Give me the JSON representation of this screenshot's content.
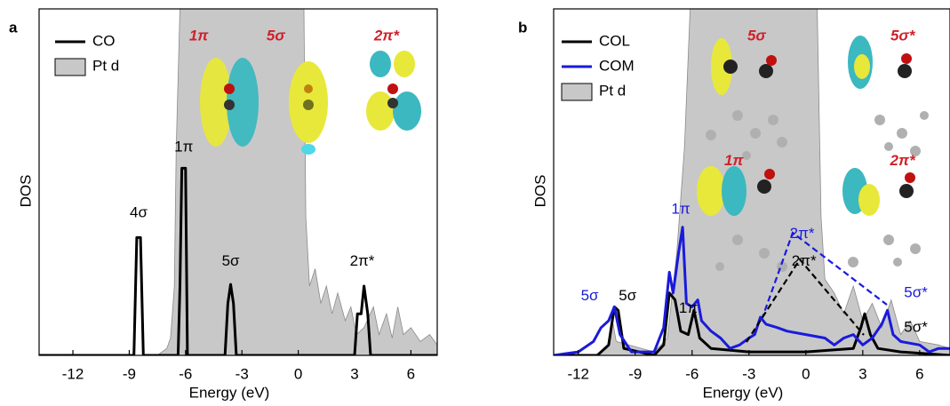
{
  "chart_data": [
    {
      "type": "area-line",
      "panel_label": "a",
      "x_label": "Energy (eV)",
      "y_label": "DOS",
      "xlim": [
        -13.8,
        7.4
      ],
      "ylim": [
        0,
        100
      ],
      "xticks": [
        -12,
        -9,
        -6,
        -3,
        0,
        3,
        6
      ],
      "series": [
        {
          "name": "CO",
          "style": "line",
          "color": "#000000",
          "x": [
            -13.8,
            -8.75,
            -8.6,
            -8.4,
            -8.25,
            -6.4,
            -6.3,
            -6.2,
            -6.0,
            -5.9,
            -3.9,
            -3.75,
            -3.6,
            -3.45,
            -3.3,
            3.0,
            3.15,
            3.35,
            3.5,
            3.7,
            3.85,
            7.4
          ],
          "values": [
            0,
            0,
            34,
            34,
            0,
            0,
            20,
            54,
            54,
            0,
            0,
            15,
            20.5,
            15,
            0,
            0,
            12,
            12,
            20,
            12,
            0,
            0
          ]
        },
        {
          "name": "Pt d",
          "style": "area",
          "color": "#c8c8c8",
          "x": [
            -7.5,
            -7.0,
            -6.8,
            -6.6,
            -6.5,
            -6.3,
            0.3,
            0.4,
            0.6,
            0.9,
            1.2,
            1.5,
            1.8,
            2.1,
            2.5,
            2.8,
            3.1,
            3.5,
            4.0,
            4.3,
            4.7,
            5.0,
            5.3,
            5.6,
            6.0,
            6.5,
            7.0,
            7.4
          ],
          "values": [
            0,
            2,
            5,
            20,
            60,
            100,
            100,
            40,
            20,
            25,
            15,
            20,
            12,
            18,
            10,
            14,
            6,
            8,
            14,
            6,
            12,
            5,
            14,
            6,
            8,
            4,
            6,
            3
          ]
        }
      ],
      "annotations": [
        {
          "text": "4σ",
          "x": -8.5,
          "y": 41,
          "color": "#000000",
          "italic": false
        },
        {
          "text": "1π",
          "x": -6.1,
          "y": 60,
          "color": "#000000",
          "italic": false
        },
        {
          "text": "5σ",
          "x": -3.6,
          "y": 27,
          "color": "#000000",
          "italic": false
        },
        {
          "text": "2π*",
          "x": 3.4,
          "y": 27,
          "color": "#000000",
          "italic": false
        },
        {
          "text": "1π",
          "x": -5.3,
          "y": 92,
          "color": "#d0202a",
          "italic": true
        },
        {
          "text": "5σ",
          "x": -1.2,
          "y": 92,
          "color": "#d0202a",
          "italic": true
        },
        {
          "text": "2π*",
          "x": 4.7,
          "y": 92,
          "color": "#d0202a",
          "italic": true
        }
      ]
    },
    {
      "type": "area-line",
      "panel_label": "b",
      "x_label": "Energy (eV)",
      "y_label": "DOS",
      "xlim": [
        -13.3,
        7.6
      ],
      "ylim": [
        0,
        100
      ],
      "xticks": [
        -12,
        -9,
        -6,
        -3,
        0,
        3,
        6
      ],
      "series": [
        {
          "name": "COL",
          "style": "line",
          "color": "#000000",
          "x": [
            -13.3,
            -11,
            -10.4,
            -10.1,
            -9.9,
            -9.6,
            -8,
            -7.5,
            -7.2,
            -6.9,
            -6.6,
            -6.2,
            -5.9,
            -5.6,
            -5,
            -3,
            0,
            2.5,
            2.9,
            3.1,
            3.4,
            3.8,
            5,
            7.6
          ],
          "values": [
            0,
            0,
            3,
            14,
            13,
            2,
            0,
            3,
            18,
            16,
            7,
            6,
            13,
            5,
            2,
            1,
            1,
            2,
            8,
            12,
            6,
            2,
            1,
            0
          ]
        },
        {
          "name": "COM",
          "style": "line",
          "color": "#1a1adc",
          "x": [
            -13.3,
            -12,
            -11.2,
            -10.8,
            -10.4,
            -10.1,
            -9.8,
            -9.2,
            -8,
            -7.5,
            -7.2,
            -7.0,
            -6.7,
            -6.5,
            -6.3,
            -6.0,
            -5.7,
            -5.5,
            -5,
            -4.5,
            -4,
            -3.5,
            -3.0,
            -2.7,
            -2.4,
            -2.1,
            -1.5,
            -1,
            0,
            1,
            1.5,
            2,
            2.5,
            3,
            3.5,
            4,
            4.3,
            4.6,
            5,
            6,
            6.5,
            7,
            7.6
          ],
          "values": [
            0,
            1,
            4,
            8,
            10,
            14,
            6,
            1,
            1,
            8,
            24,
            18,
            30,
            37,
            15,
            14,
            16,
            10,
            7,
            5,
            2,
            3,
            5,
            6,
            11,
            9,
            8,
            7,
            6,
            5,
            3,
            5,
            6,
            3,
            5,
            9,
            13,
            6,
            4,
            3,
            1,
            2,
            2
          ]
        },
        {
          "name": "Pt d",
          "style": "area",
          "color": "#c8c8c8",
          "x": [
            -11,
            -10.5,
            -10.2,
            -10,
            -8,
            -7.3,
            -6.8,
            -6.4,
            -6.1,
            0.6,
            0.8,
            1,
            1.5,
            2,
            2.5,
            3,
            3.5,
            4,
            4.5,
            5,
            5.5,
            6,
            7,
            7.6
          ],
          "values": [
            0,
            2,
            10,
            4,
            1,
            5,
            30,
            60,
            100,
            100,
            40,
            22,
            18,
            12,
            20,
            10,
            15,
            8,
            16,
            6,
            10,
            4,
            3,
            2
          ]
        }
      ],
      "annotations": [
        {
          "text": "5σ",
          "x": -11.4,
          "y": 17,
          "color": "#1a1adc",
          "italic": false
        },
        {
          "text": "5σ",
          "x": -9.4,
          "y": 17,
          "color": "#000000",
          "italic": false
        },
        {
          "text": "1π",
          "x": -6.6,
          "y": 42,
          "color": "#1a1adc",
          "italic": false
        },
        {
          "text": "1π",
          "x": -6.2,
          "y": 13.5,
          "color": "#000000",
          "italic": false
        },
        {
          "text": "2π*",
          "x": -0.2,
          "y": 35,
          "color": "#1a1adc",
          "italic": false
        },
        {
          "text": "2π*",
          "x": -0.1,
          "y": 27,
          "color": "#000000",
          "italic": false
        },
        {
          "text": "5σ*",
          "x": 5.8,
          "y": 18,
          "color": "#1a1adc",
          "italic": false
        },
        {
          "text": "5σ*",
          "x": 5.8,
          "y": 8,
          "color": "#000000",
          "italic": false
        },
        {
          "text": "5σ",
          "x": -2.6,
          "y": 92,
          "color": "#d0202a",
          "italic": true
        },
        {
          "text": "5σ*",
          "x": 5.1,
          "y": 92,
          "color": "#d0202a",
          "italic": true
        },
        {
          "text": "1π",
          "x": -3.8,
          "y": 56,
          "color": "#d0202a",
          "italic": true
        },
        {
          "text": "2π*",
          "x": 5.1,
          "y": 56,
          "color": "#d0202a",
          "italic": true
        }
      ]
    }
  ]
}
